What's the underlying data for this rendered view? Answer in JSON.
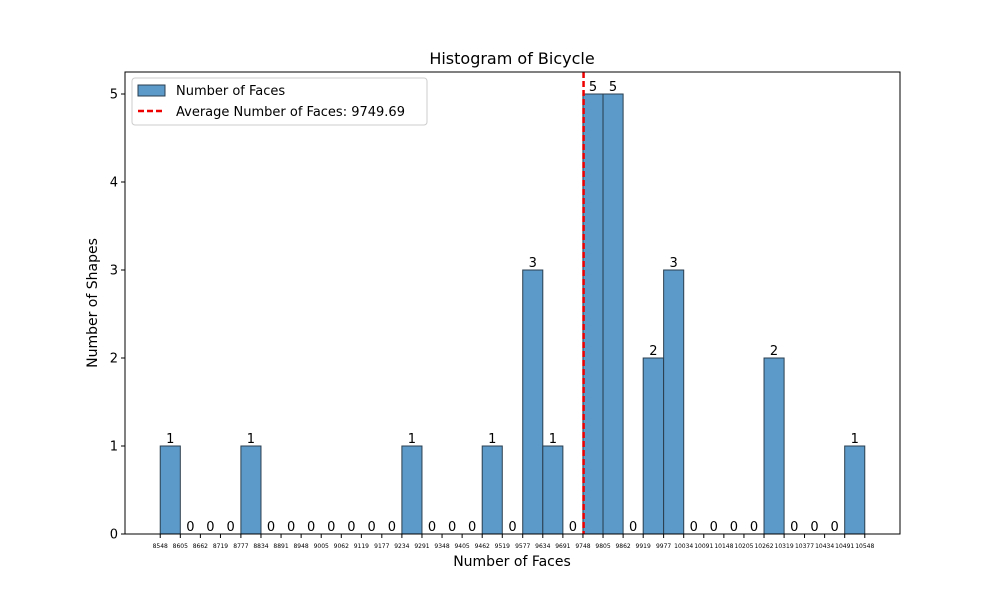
{
  "chart_data": {
    "type": "bar",
    "title": "Histogram of Bicycle",
    "xlabel": "Number of Faces",
    "ylabel": "Number of Shapes",
    "ylim": [
      0,
      5.25
    ],
    "yticks": [
      "0",
      "1",
      "2",
      "3",
      "4",
      "5"
    ],
    "bin_edges": [
      8548,
      8605,
      8662,
      8719,
      8777,
      8834,
      8891,
      8948,
      9005,
      9062,
      9119,
      9177,
      9234,
      9291,
      9348,
      9405,
      9462,
      9519,
      9577,
      9634,
      9691,
      9748,
      9805,
      9862,
      9919,
      9977,
      10034,
      10091,
      10148,
      10205,
      10262,
      10319,
      10377,
      10434,
      10491,
      10548
    ],
    "values": [
      1,
      0,
      0,
      0,
      1,
      0,
      0,
      0,
      0,
      0,
      0,
      0,
      1,
      0,
      0,
      0,
      1,
      0,
      3,
      1,
      0,
      5,
      5,
      0,
      2,
      3,
      0,
      0,
      0,
      0,
      2,
      0,
      0,
      0,
      1
    ],
    "average_line": {
      "value": 9749.69
    },
    "legend": {
      "position": "upper-left",
      "entries": [
        "Number of Faces",
        "Average Number of Faces: 9749.69"
      ]
    },
    "grid": false,
    "colors": {
      "bar": "#5b9ac9",
      "bar_edge": "#2b3f4f",
      "average_line": "#ee0000"
    }
  }
}
